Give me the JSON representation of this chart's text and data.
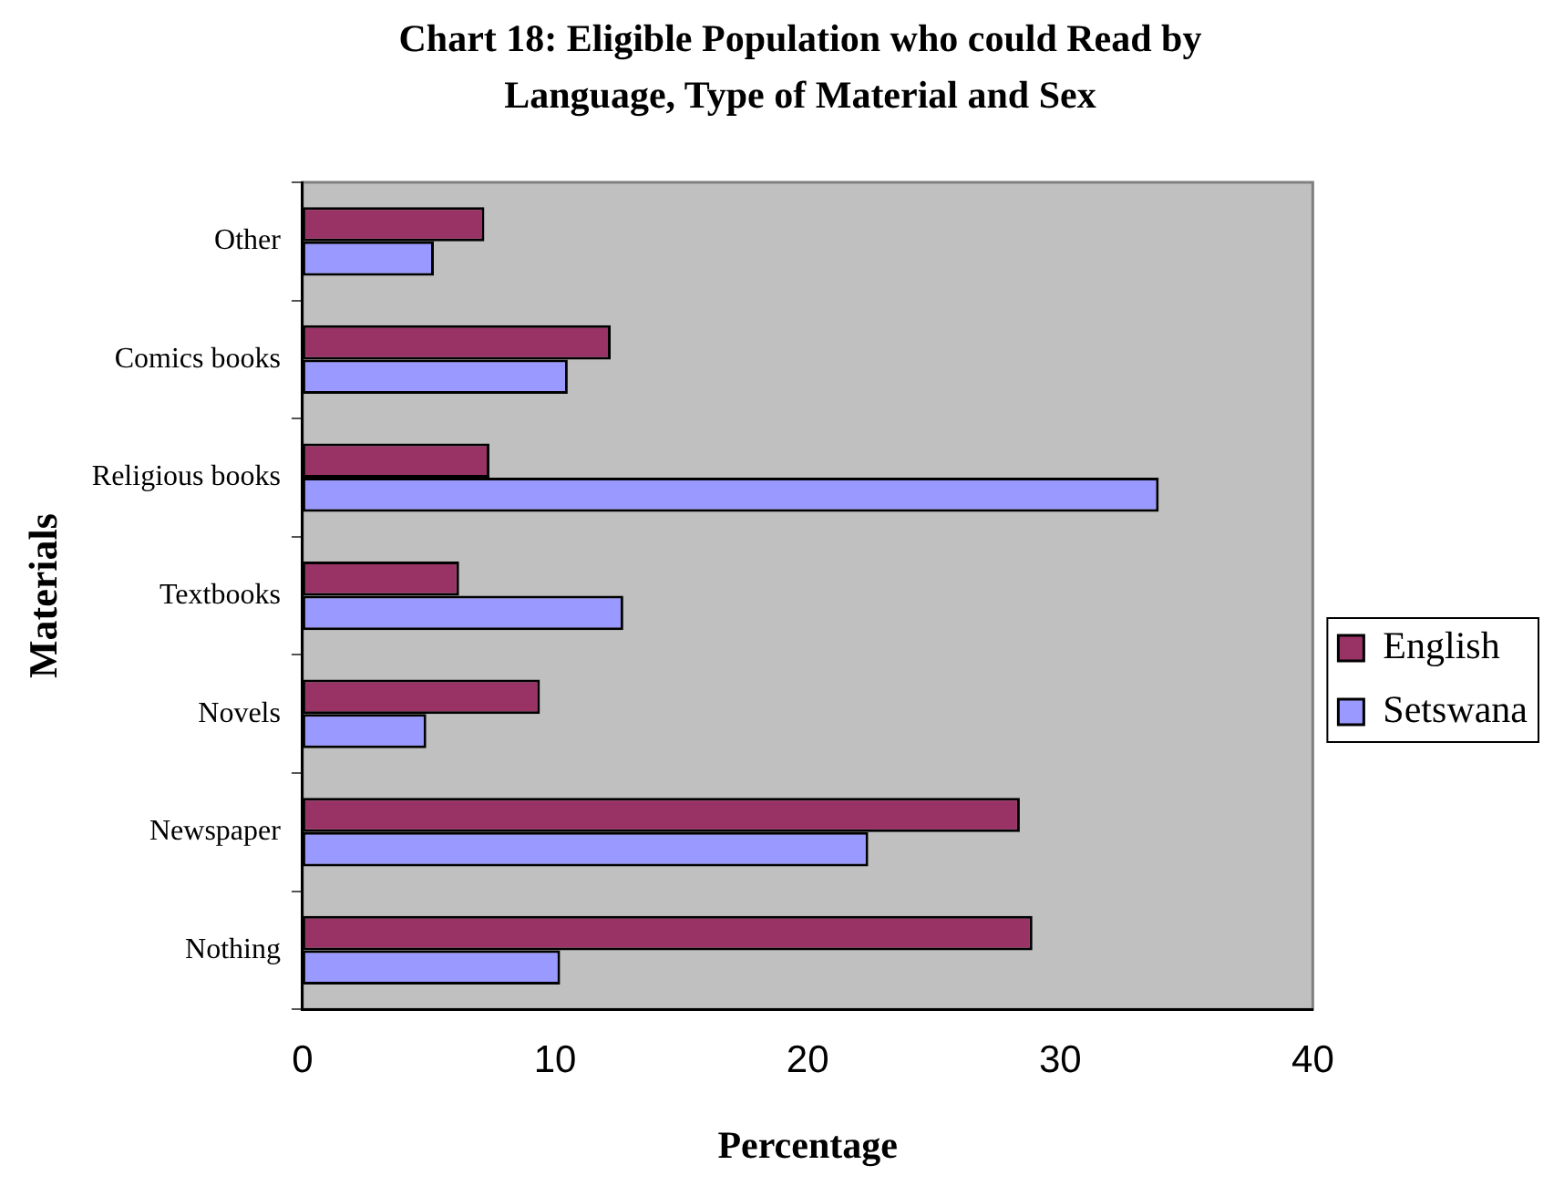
{
  "chart_data": {
    "type": "bar",
    "orientation": "horizontal",
    "title": "Chart 18: Eligible Population who could Read by Language, Type of Material and Sex",
    "xlabel": "Percentage",
    "ylabel": "Materials",
    "categories": [
      "Other",
      "Comics books",
      "Religious books",
      "Textbooks",
      "Novels",
      "Newspaper",
      "Nothing"
    ],
    "series": [
      {
        "name": "English",
        "color": "#993366",
        "values": [
          7.2,
          12.2,
          7.4,
          6.2,
          9.4,
          28.4,
          28.9
        ]
      },
      {
        "name": "Setswana",
        "color": "#9999ff",
        "values": [
          5.2,
          10.5,
          33.9,
          12.7,
          4.9,
          22.4,
          10.2
        ]
      }
    ],
    "xlim": [
      0,
      40
    ],
    "xticks": [
      0,
      10,
      20,
      30,
      40
    ],
    "grid": false,
    "legend": "right"
  }
}
